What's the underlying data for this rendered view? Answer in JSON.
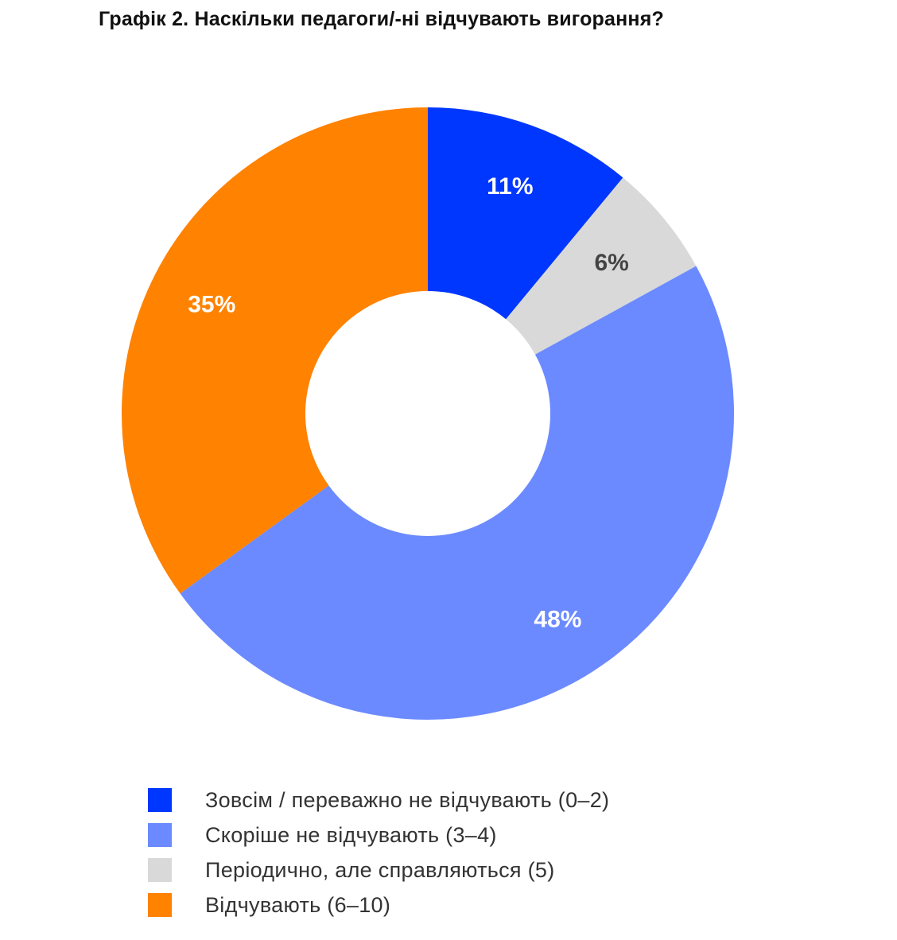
{
  "chart_data": {
    "type": "pie",
    "variant": "donut",
    "title": "Графік 2. Наскільки педагоги/-ні відчувають вигорання?",
    "categories": [
      "Зовсім / переважно не відчувають (0–2)",
      "Скоріше не відчувають (3–4)",
      "Періодично, але справляються (5)",
      "Відчувають (6–10)"
    ],
    "values": [
      11,
      48,
      6,
      35
    ],
    "labels": [
      "11%",
      "48%",
      "6%",
      "35%"
    ],
    "colors": [
      "#0037ff",
      "#6b8aff",
      "#d9d9d9",
      "#ff8200"
    ],
    "label_colors": [
      "#ffffff",
      "#ffffff",
      "#444444",
      "#ffffff"
    ],
    "slice_order_clockwise_from_top": [
      0,
      2,
      1,
      3
    ],
    "legend_position": "bottom-left"
  }
}
